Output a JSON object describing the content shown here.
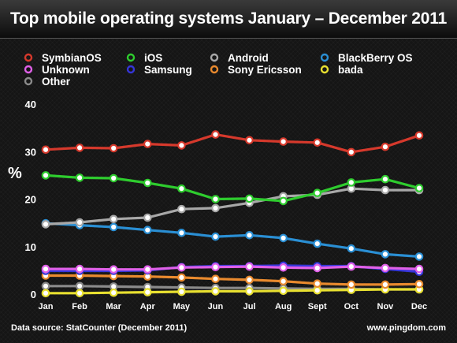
{
  "title": "Top mobile operating systems January – December 2011",
  "footer": {
    "source": "Data source: StatCounter (December 2011)",
    "site": "www.pingdom.com"
  },
  "chart_data": {
    "type": "line",
    "title": "Top mobile operating systems January – December 2011",
    "xlabel": "",
    "ylabel": "%",
    "ylim": [
      0,
      40
    ],
    "yticks": [
      0,
      10,
      20,
      30,
      40
    ],
    "grid": false,
    "legend_position": "top",
    "categories": [
      "Jan",
      "Feb",
      "Mar",
      "Apr",
      "May",
      "Jun",
      "Jul",
      "Aug",
      "Sept",
      "Oct",
      "Nov",
      "Dec"
    ],
    "series": [
      {
        "name": "SymbianOS",
        "color": "#d6392c",
        "values": [
          30.4,
          30.8,
          30.7,
          31.6,
          31.3,
          33.6,
          32.4,
          32.1,
          31.9,
          29.9,
          31.0,
          33.4
        ]
      },
      {
        "name": "iOS",
        "color": "#2ecc2e",
        "values": [
          25.0,
          24.5,
          24.4,
          23.4,
          22.2,
          20.0,
          20.1,
          19.6,
          21.3,
          23.5,
          24.2,
          22.3
        ]
      },
      {
        "name": "Android",
        "color": "#a8a8a8",
        "values": [
          14.7,
          15.1,
          15.8,
          16.1,
          17.9,
          18.1,
          19.2,
          20.6,
          20.9,
          22.2,
          21.9,
          21.9
        ]
      },
      {
        "name": "BlackBerry OS",
        "color": "#2a8fd4",
        "values": [
          14.9,
          14.5,
          14.1,
          13.5,
          12.9,
          12.1,
          12.4,
          11.8,
          10.6,
          9.6,
          8.4,
          7.9
        ]
      },
      {
        "name": "Unknown",
        "color": "#e060e8",
        "values": [
          5.3,
          5.3,
          5.2,
          5.2,
          5.6,
          5.7,
          5.8,
          5.6,
          5.5,
          5.8,
          5.5,
          5.3
        ]
      },
      {
        "name": "Samsung",
        "color": "#3535d8",
        "values": [
          4.9,
          4.9,
          4.9,
          5.0,
          5.7,
          5.9,
          5.9,
          6.0,
          5.9,
          5.9,
          5.3,
          4.7
        ]
      },
      {
        "name": "Sony Ericsson",
        "color": "#e98a2e",
        "values": [
          3.9,
          3.9,
          3.8,
          3.7,
          3.5,
          3.2,
          3.0,
          2.7,
          2.2,
          2.0,
          2.0,
          2.1
        ]
      },
      {
        "name": "bada",
        "color": "#e8e030",
        "values": [
          0.2,
          0.2,
          0.3,
          0.4,
          0.5,
          0.6,
          0.6,
          0.7,
          0.8,
          0.9,
          1.0,
          1.0
        ]
      },
      {
        "name": "Other",
        "color": "#8a8a8a",
        "values": [
          1.7,
          1.7,
          1.6,
          1.5,
          1.4,
          1.3,
          1.3,
          1.2,
          1.1,
          1.1,
          1.0,
          1.0
        ]
      }
    ]
  }
}
